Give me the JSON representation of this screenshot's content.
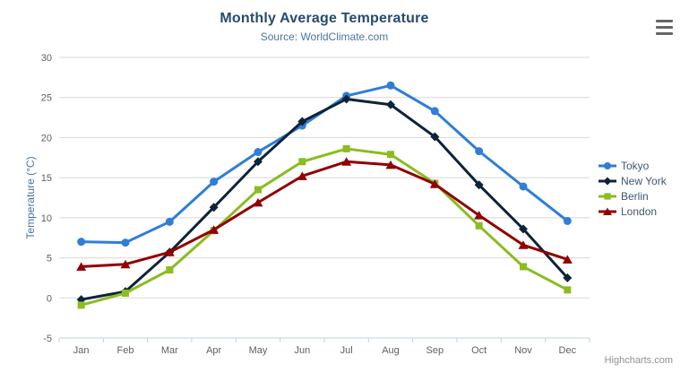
{
  "chart_data": {
    "type": "line",
    "title": "Monthly Average Temperature",
    "subtitle": "Source: WorldClimate.com",
    "xlabel": "",
    "ylabel": "Temperature (°C)",
    "categories": [
      "Jan",
      "Feb",
      "Mar",
      "Apr",
      "May",
      "Jun",
      "Jul",
      "Aug",
      "Sep",
      "Oct",
      "Nov",
      "Dec"
    ],
    "ylim": [
      -5,
      30
    ],
    "yticks": [
      -5,
      0,
      5,
      10,
      15,
      20,
      25,
      30
    ],
    "grid": true,
    "legend_position": "right",
    "series": [
      {
        "name": "Tokyo",
        "color": "#2f7ed8",
        "marker": "circle",
        "values": [
          7.0,
          6.9,
          9.5,
          14.5,
          18.2,
          21.5,
          25.2,
          26.5,
          23.3,
          18.3,
          13.9,
          9.6
        ]
      },
      {
        "name": "New York",
        "color": "#0d233a",
        "marker": "diamond",
        "values": [
          -0.2,
          0.8,
          5.7,
          11.3,
          17.0,
          22.0,
          24.8,
          24.1,
          20.1,
          14.1,
          8.6,
          2.5
        ]
      },
      {
        "name": "Berlin",
        "color": "#8bbc21",
        "marker": "square",
        "values": [
          -0.9,
          0.6,
          3.5,
          8.4,
          13.5,
          17.0,
          18.6,
          17.9,
          14.3,
          9.0,
          3.9,
          1.0
        ]
      },
      {
        "name": "London",
        "color": "#910000",
        "marker": "triangle",
        "values": [
          3.9,
          4.2,
          5.7,
          8.5,
          11.9,
          15.2,
          17.0,
          16.6,
          14.2,
          10.3,
          6.6,
          4.8
        ]
      }
    ],
    "colors": {
      "title": "#274b6d",
      "subtitle": "#4d759e",
      "axis_title": "#4a74a3",
      "axis_labels": "#606060",
      "grid_line": "#D8D8D8",
      "axis_line": "#C0D0E0",
      "legend_text": "#3E576F",
      "credits_text": "#909090",
      "menu_icon": "#666666"
    },
    "credits": "Highcharts.com"
  },
  "icons": {
    "menu": "hamburger-menu-icon",
    "legend_markers": [
      "circle-marker-icon",
      "diamond-marker-icon",
      "square-marker-icon",
      "triangle-marker-icon"
    ]
  }
}
